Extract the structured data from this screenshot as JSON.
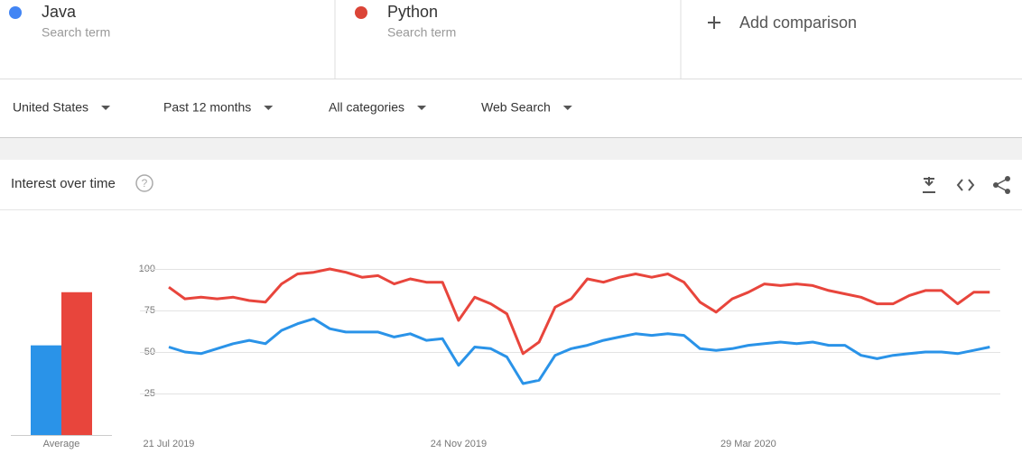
{
  "search_terms": [
    {
      "name": "Java",
      "subtitle": "Search term",
      "color": "#4285f4"
    },
    {
      "name": "Python",
      "subtitle": "Search term",
      "color": "#db4437"
    }
  ],
  "add_comparison": "Add comparison",
  "filters": [
    "United States",
    "Past 12 months",
    "All categories",
    "Web Search"
  ],
  "chart_data": {
    "type": "line",
    "title": "Interest over time",
    "categories": [
      "21 Jul 2019",
      null,
      null,
      null,
      null,
      null,
      null,
      null,
      null,
      null,
      null,
      null,
      null,
      null,
      null,
      null,
      null,
      null,
      "24 Nov 2019",
      null,
      null,
      null,
      null,
      null,
      null,
      null,
      null,
      null,
      null,
      null,
      null,
      null,
      null,
      null,
      null,
      null,
      "29 Mar 2020",
      null,
      null,
      null,
      null,
      null,
      null,
      null,
      null,
      null,
      null,
      null,
      null,
      null,
      null,
      null
    ],
    "series": [
      {
        "name": "Java",
        "color": "#2a93e8",
        "values": [
          53,
          50,
          49,
          52,
          55,
          57,
          55,
          63,
          67,
          70,
          64,
          62,
          62,
          62,
          59,
          61,
          57,
          58,
          42,
          53,
          52,
          47,
          31,
          33,
          48,
          52,
          54,
          57,
          59,
          61,
          60,
          61,
          60,
          52,
          51,
          52,
          54,
          55,
          56,
          55,
          56,
          54,
          54,
          48,
          46,
          48,
          49,
          50,
          50,
          49,
          51,
          53
        ]
      },
      {
        "name": "Python",
        "color": "#e8453c",
        "values": [
          89,
          82,
          83,
          82,
          83,
          81,
          80,
          91,
          97,
          98,
          100,
          98,
          95,
          96,
          91,
          94,
          92,
          92,
          69,
          83,
          79,
          73,
          49,
          56,
          77,
          82,
          94,
          92,
          95,
          97,
          95,
          97,
          92,
          80,
          74,
          82,
          86,
          91,
          90,
          91,
          90,
          87,
          85,
          83,
          79,
          79,
          84,
          87,
          87,
          79,
          86,
          86
        ]
      }
    ],
    "ylim": [
      0,
      100
    ],
    "yticks": [
      25,
      50,
      75,
      100
    ],
    "grid": true,
    "average": {
      "label": "Average",
      "values": [
        54,
        86
      ]
    }
  }
}
